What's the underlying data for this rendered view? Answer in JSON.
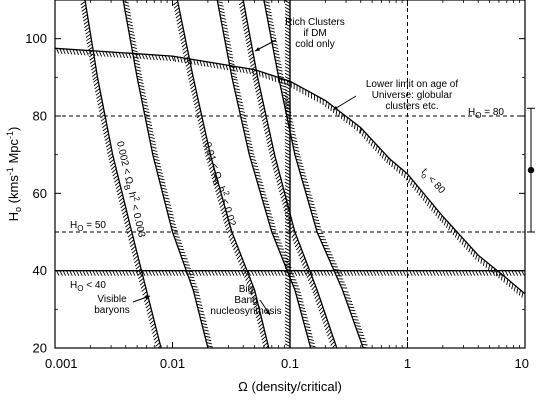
{
  "chart_data": {
    "type": "line",
    "x_scale": "log",
    "xlim": [
      0.001,
      10
    ],
    "ylim": [
      20,
      110
    ],
    "xlabel": "Ω  (density/critical)",
    "ylabel_parts": {
      "main": "H",
      "sub": "o",
      "rest": "  (kms",
      "sup": "-1",
      "tail": " Mpc",
      "sup2": "-1",
      "close": ")"
    },
    "x_ticks": [
      {
        "value": 0.001,
        "label": "0.001"
      },
      {
        "value": 0.01,
        "label": "0.01"
      },
      {
        "value": 0.1,
        "label": "0.1"
      },
      {
        "value": 1,
        "label": "1"
      },
      {
        "value": 10,
        "label": "10"
      }
    ],
    "y_ticks": [
      {
        "value": 20,
        "label": "20"
      },
      {
        "value": 40,
        "label": "40"
      },
      {
        "value": 60,
        "label": "60"
      },
      {
        "value": 80,
        "label": "80"
      },
      {
        "value": 100,
        "label": "100"
      }
    ],
    "reference_lines": {
      "horizontal": [
        {
          "y": 80,
          "label": "H",
          "sub": "O",
          "rest": " = 80",
          "style": "dashed"
        },
        {
          "y": 50,
          "label": "H",
          "sub": "O",
          "rest": " = 50",
          "style": "dashed"
        },
        {
          "y": 40,
          "label": "H",
          "sub": "O",
          "rest": " < 40",
          "style": "hatched"
        }
      ],
      "vertical": [
        {
          "x": 0.1,
          "style": "hatched"
        },
        {
          "x": 1,
          "style": "dashed"
        }
      ]
    },
    "series": [
      {
        "points": [
          [
            0.0018,
            110
          ],
          [
            0.0023,
            90
          ],
          [
            0.0031,
            70
          ],
          [
            0.0045,
            50
          ],
          [
            0.006,
            35
          ],
          [
            0.008,
            20
          ]
        ]
      },
      {
        "points": [
          [
            0.0038,
            110
          ],
          [
            0.005,
            90
          ],
          [
            0.0068,
            70
          ],
          [
            0.01,
            50
          ],
          [
            0.015,
            35
          ],
          [
            0.02,
            20
          ]
        ]
      },
      {
        "points": [
          [
            0.011,
            110
          ],
          [
            0.015,
            90
          ],
          [
            0.021,
            70
          ],
          [
            0.032,
            50
          ],
          [
            0.05,
            35
          ],
          [
            0.066,
            20
          ]
        ]
      },
      {
        "points": [
          [
            0.024,
            110
          ],
          [
            0.032,
            90
          ],
          [
            0.045,
            70
          ],
          [
            0.07,
            50
          ],
          [
            0.11,
            35
          ],
          [
            0.15,
            20
          ]
        ]
      },
      {
        "points": [
          [
            0.04,
            110
          ],
          [
            0.053,
            90
          ],
          [
            0.074,
            70
          ],
          [
            0.11,
            50
          ],
          [
            0.17,
            35
          ],
          [
            0.25,
            20
          ]
        ]
      },
      {
        "points": [
          [
            0.06,
            110
          ],
          [
            0.08,
            90
          ],
          [
            0.11,
            70
          ],
          [
            0.17,
            50
          ],
          [
            0.28,
            35
          ],
          [
            0.42,
            20
          ]
        ]
      },
      {
        "points": [
          [
            0.001,
            97.5
          ],
          [
            0.01,
            95.5
          ],
          [
            0.05,
            92
          ],
          [
            0.1,
            89
          ],
          [
            0.2,
            84
          ],
          [
            0.4,
            77
          ],
          [
            0.7,
            69
          ],
          [
            1,
            65
          ],
          [
            2,
            54
          ],
          [
            4,
            44
          ],
          [
            7,
            38
          ],
          [
            10,
            34
          ]
        ]
      }
    ],
    "annotations": [
      {
        "lines": [
          "Rich Clusters",
          "if DM",
          "cold only"
        ]
      },
      {
        "lines": [
          "Lower limit on age of",
          "Universe: globular",
          "clusters  etc."
        ]
      },
      {
        "lines": [
          "Visible",
          "baryons"
        ]
      },
      {
        "lines": [
          "Big",
          "Bang",
          "nucleosynthesis"
        ]
      },
      {
        "parts": [
          "0.002 < Ω",
          "B",
          " h",
          "2",
          " < 0.003"
        ]
      },
      {
        "parts": [
          "0.01 < Ω",
          "B",
          " h",
          "2",
          " < 0.02"
        ]
      },
      {
        "parts": [
          "t",
          "o",
          " < 80"
        ]
      }
    ],
    "error_bar": {
      "center": 66,
      "low": 50,
      "high": 82
    }
  }
}
